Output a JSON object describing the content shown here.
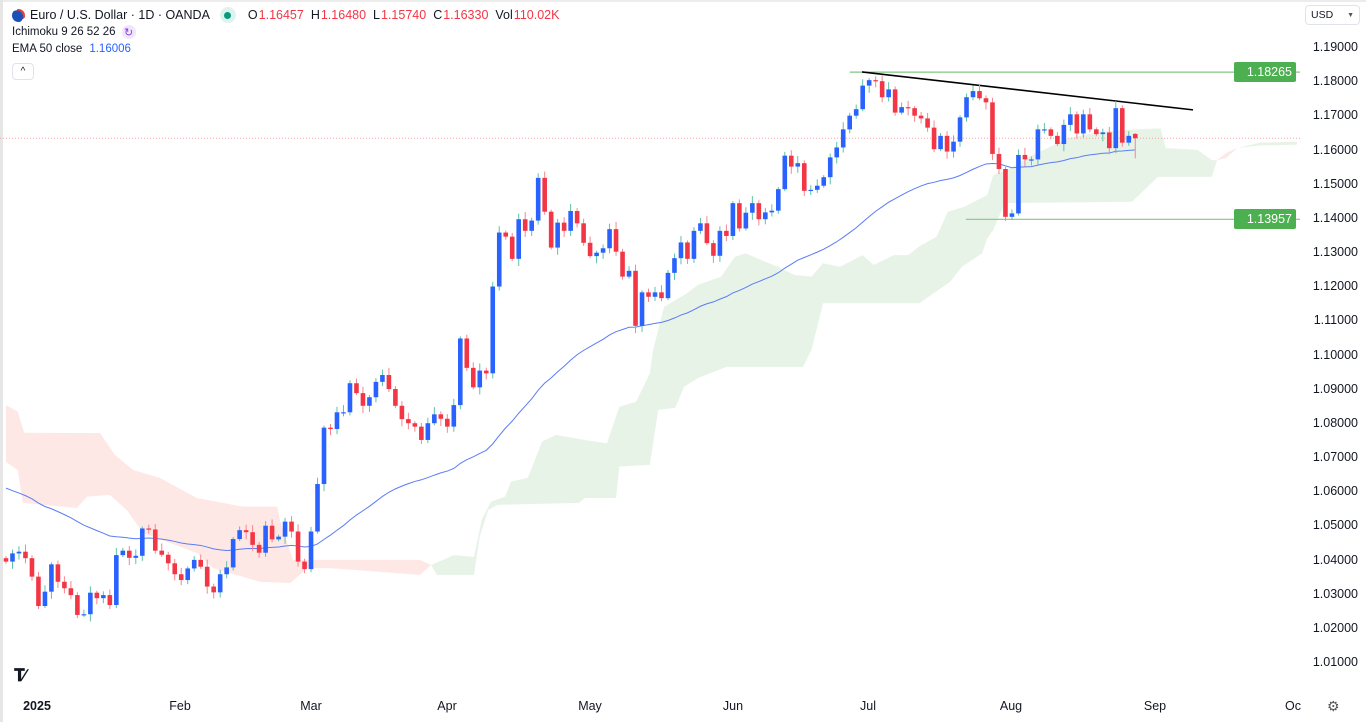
{
  "header": {
    "symbol_title": "Euro / U.S. Dollar · 1D · OANDA",
    "market_status": "open",
    "o_label": "O",
    "o": "1.16457",
    "h_label": "H",
    "h": "1.16480",
    "l_label": "L",
    "l": "1.15740",
    "c_label": "C",
    "c": "1.16330",
    "vol_label": "Vol",
    "vol": "110.02K"
  },
  "indicators": {
    "ichimoku_label": "Ichimoku 9 26 52 26",
    "ema_label": "EMA 50 close",
    "ema_value": "1.16006"
  },
  "controls": {
    "collapse_icon": "chevron-up-icon",
    "collapse_glyph": "^",
    "currency": "USD",
    "settings_icon": "gear-icon"
  },
  "logo": "TV",
  "chart_data": {
    "type": "candlestick",
    "title": "",
    "x_tick_labels": [
      "2025",
      "Feb",
      "Mar",
      "Apr",
      "May",
      "Jun",
      "Jul",
      "Aug",
      "Sep",
      "Oc"
    ],
    "y_tick_labels": [
      "1.19000",
      "1.18000",
      "1.17000",
      "1.16000",
      "1.15000",
      "1.14000",
      "1.13000",
      "1.12000",
      "1.11000",
      "1.10000",
      "1.09000",
      "1.08000",
      "1.07000",
      "1.06000",
      "1.05000",
      "1.04000",
      "1.03000",
      "1.02000",
      "1.01000"
    ],
    "ylim": [
      1.0065,
      1.1935
    ],
    "grid": false,
    "colors": {
      "up_body": "#2962ff",
      "up_wick": "#5cc2a9",
      "down_body": "#f23645",
      "down_wick": "#f7868c",
      "ema": "#5b7cf5",
      "cloud_up": "#e8f3e8",
      "cloud_down": "#fde8e6",
      "trendline": "#000000",
      "level": "#81c784",
      "level_badge": "#4caf50",
      "last_price_line": "#f5a3a8"
    },
    "first_open": 1.0404,
    "closes": [
      1.0394,
      1.0418,
      1.0423,
      1.0404,
      1.035,
      1.0264,
      1.0306,
      1.0386,
      1.0335,
      1.0316,
      1.0296,
      1.0238,
      1.024,
      1.0303,
      1.0287,
      1.0296,
      1.0267,
      1.0413,
      1.0426,
      1.0405,
      1.0411,
      1.0491,
      1.0488,
      1.0426,
      1.0414,
      1.0389,
      1.0357,
      1.034,
      1.0374,
      1.0399,
      1.0379,
      1.0321,
      1.0304,
      1.0357,
      1.0377,
      1.046,
      1.0486,
      1.048,
      1.0443,
      1.042,
      1.0499,
      1.0459,
      1.0467,
      1.0511,
      1.0482,
      1.0394,
      1.0372,
      1.0482,
      1.0621,
      1.0786,
      1.0782,
      1.0831,
      1.0831,
      1.0916,
      1.0887,
      1.085,
      1.0875,
      1.092,
      1.094,
      1.0899,
      1.085,
      1.0811,
      1.0799,
      1.0789,
      1.075,
      1.0799,
      1.0825,
      1.0812,
      1.0789,
      1.0852,
      1.1047,
      1.0961,
      1.0904,
      1.0953,
      1.0945,
      1.1199,
      1.1357,
      1.1345,
      1.128,
      1.1396,
      1.1362,
      1.1392,
      1.1517,
      1.1418,
      1.1313,
      1.1386,
      1.1362,
      1.142,
      1.1384,
      1.1327,
      1.1288,
      1.1298,
      1.1311,
      1.1367,
      1.1301,
      1.1228,
      1.1245,
      1.1084,
      1.1182,
      1.1169,
      1.1182,
      1.1165,
      1.1239,
      1.1282,
      1.1328,
      1.128,
      1.1362,
      1.1384,
      1.1326,
      1.1289,
      1.1362,
      1.1347,
      1.1443,
      1.1369,
      1.1415,
      1.1443,
      1.1396,
      1.1416,
      1.1421,
      1.1484,
      1.1582,
      1.155,
      1.156,
      1.1479,
      1.1482,
      1.1494,
      1.1519,
      1.1577,
      1.1606,
      1.1659,
      1.1699,
      1.1718,
      1.1787,
      1.1803,
      1.18,
      1.1753,
      1.1776,
      1.1708,
      1.1724,
      1.1721,
      1.1699,
      1.1691,
      1.1664,
      1.1601,
      1.164,
      1.1594,
      1.1623,
      1.1694,
      1.1753,
      1.1771,
      1.175,
      1.1738,
      1.1587,
      1.1543,
      1.1403,
      1.1413,
      1.1584,
      1.1571,
      1.1571,
      1.1659,
      1.1659,
      1.164,
      1.1616,
      1.1672,
      1.1703,
      1.1647,
      1.1703,
      1.1659,
      1.1645,
      1.165,
      1.1604,
      1.1721,
      1.162,
      1.164,
      1.1633
    ],
    "last_bar": {
      "open": 1.16457,
      "high": 1.1648,
      "low": 1.1574,
      "close": 1.1633
    },
    "ema": {
      "period": 50,
      "start": 1.0609,
      "last": 1.16006
    },
    "ichimoku_cloud": [
      {
        "color": "down",
        "upper": [
          [
            0,
            1.0852
          ],
          [
            1.8,
            1.0833
          ],
          [
            2.8,
            1.0771
          ],
          [
            14.5,
            1.077
          ],
          [
            16.8,
            1.0706
          ],
          [
            19.6,
            1.0662
          ],
          [
            23.7,
            1.0639
          ],
          [
            29.4,
            1.058
          ],
          [
            36.5,
            1.0555
          ],
          [
            41.8,
            1.0555
          ],
          [
            42.2,
            1.0516
          ],
          [
            44.2,
            1.0399
          ],
          [
            63.8,
            1.0399
          ],
          [
            65.5,
            1.0384
          ]
        ],
        "lower": [
          [
            0,
            1.0686
          ],
          [
            1.8,
            1.0662
          ],
          [
            2.6,
            1.0566
          ],
          [
            10.9,
            1.0551
          ],
          [
            12.5,
            1.0584
          ],
          [
            16.0,
            1.0589
          ],
          [
            18.6,
            1.0545
          ],
          [
            21.1,
            1.0478
          ],
          [
            29.4,
            1.0419
          ],
          [
            31.9,
            1.0375
          ],
          [
            39.1,
            1.0335
          ],
          [
            43.8,
            1.0331
          ],
          [
            46.4,
            1.0375
          ],
          [
            49.9,
            1.0375
          ],
          [
            63.8,
            1.0355
          ],
          [
            65.5,
            1.0384
          ]
        ]
      },
      {
        "color": "up",
        "upper": [
          [
            65.5,
            1.0384
          ],
          [
            69.0,
            1.0413
          ],
          [
            72.1,
            1.0408
          ],
          [
            73.3,
            1.0516
          ],
          [
            74.7,
            1.0569
          ],
          [
            76.9,
            1.0584
          ],
          [
            77.8,
            1.0628
          ],
          [
            80.4,
            1.0639
          ],
          [
            82.6,
            1.0745
          ],
          [
            84.7,
            1.0765
          ],
          [
            89.2,
            1.075
          ],
          [
            92.6,
            1.074
          ],
          [
            94.5,
            1.0847
          ],
          [
            97.1,
            1.0862
          ],
          [
            99.2,
            1.0945
          ],
          [
            99.7,
            1.1013
          ],
          [
            101.4,
            1.114
          ],
          [
            104.9,
            1.1179
          ],
          [
            106.6,
            1.1204
          ],
          [
            110.2,
            1.1228
          ],
          [
            112.3,
            1.1286
          ],
          [
            114.0,
            1.1296
          ],
          [
            116.3,
            1.1277
          ],
          [
            118.9,
            1.1257
          ],
          [
            121.5,
            1.1233
          ],
          [
            124.1,
            1.1228
          ],
          [
            125.9,
            1.1267
          ],
          [
            128.5,
            1.1257
          ],
          [
            132.0,
            1.1291
          ],
          [
            133.7,
            1.1262
          ],
          [
            136.8,
            1.1291
          ],
          [
            139.0,
            1.1291
          ],
          [
            140.7,
            1.1316
          ],
          [
            143.4,
            1.1345
          ],
          [
            145.1,
            1.1418
          ],
          [
            147.7,
            1.1433
          ],
          [
            151.2,
            1.1467
          ],
          [
            152.1,
            1.1525
          ],
          [
            154.7,
            1.1545
          ],
          [
            158.2,
            1.1584
          ],
          [
            160.9,
            1.1608
          ],
          [
            163.5,
            1.1633
          ],
          [
            168.7,
            1.1652
          ],
          [
            174.0,
            1.1659
          ],
          [
            177.9,
            1.1662
          ],
          [
            178.7,
            1.1604
          ],
          [
            183.6,
            1.1599
          ],
          [
            185.8,
            1.1569
          ],
          [
            186.6,
            1.1569
          ]
        ],
        "lower": [
          [
            65.5,
            1.0384
          ],
          [
            66.4,
            1.0355
          ],
          [
            72.1,
            1.0355
          ],
          [
            73.0,
            1.0467
          ],
          [
            74.3,
            1.0545
          ],
          [
            75.7,
            1.056
          ],
          [
            88.3,
            1.0566
          ],
          [
            89.2,
            1.058
          ],
          [
            94.0,
            1.058
          ],
          [
            94.5,
            1.0672
          ],
          [
            99.2,
            1.0677
          ],
          [
            100.5,
            1.0838
          ],
          [
            103.1,
            1.0844
          ],
          [
            104.5,
            1.0906
          ],
          [
            106.6,
            1.0931
          ],
          [
            111.0,
            1.0964
          ],
          [
            122.8,
            1.0964
          ],
          [
            124.1,
            1.1013
          ],
          [
            125.9,
            1.115
          ],
          [
            140.7,
            1.115
          ],
          [
            142.5,
            1.1174
          ],
          [
            145.5,
            1.1213
          ],
          [
            147.3,
            1.1257
          ],
          [
            150.4,
            1.1296
          ],
          [
            151.2,
            1.134
          ],
          [
            152.1,
            1.1364
          ],
          [
            153.9,
            1.1443
          ],
          [
            173.5,
            1.1447
          ],
          [
            177.5,
            1.152
          ],
          [
            185.8,
            1.152
          ],
          [
            186.6,
            1.1569
          ]
        ]
      },
      {
        "color": "down",
        "upper": [
          [
            186.6,
            1.1569
          ],
          [
            188.0,
            1.159
          ],
          [
            189.7,
            1.1604
          ]
        ],
        "lower": [
          [
            186.6,
            1.1569
          ],
          [
            188.0,
            1.1575
          ],
          [
            189.7,
            1.1604
          ]
        ]
      },
      {
        "color": "up",
        "upper": [
          [
            189.7,
            1.1604
          ],
          [
            193.2,
            1.162
          ],
          [
            198.9,
            1.1623
          ]
        ],
        "lower": [
          [
            189.7,
            1.1604
          ],
          [
            193.2,
            1.1612
          ],
          [
            198.9,
            1.1614
          ]
        ]
      }
    ],
    "drawings": {
      "trendline": {
        "from": [
          131.9,
          1.1827
        ],
        "to": [
          182.9,
          1.1716
        ]
      },
      "levels": [
        {
          "price": 1.18265,
          "label": "1.18265",
          "from_bar": 130.0
        },
        {
          "price": 1.13957,
          "label": "1.13957",
          "from_bar": 147.9
        }
      ],
      "last_price": 1.1633
    }
  }
}
